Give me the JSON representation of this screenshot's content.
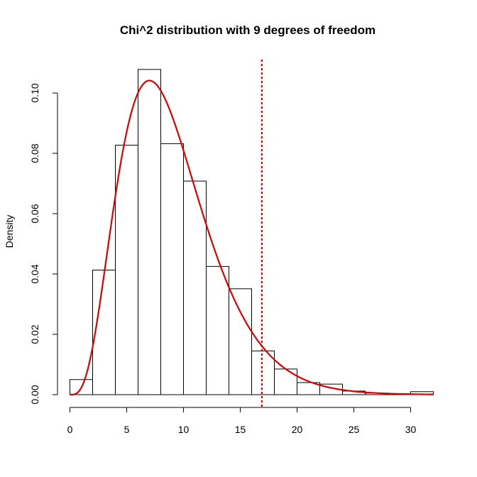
{
  "chart_data": {
    "type": "bar",
    "title": "Chi^2 distribution with 9 degrees of freedom",
    "xlabel": "",
    "ylabel": "Density",
    "xlim": [
      0,
      32
    ],
    "ylim": [
      0,
      0.11
    ],
    "x_ticks": [
      0,
      5,
      10,
      15,
      20,
      25,
      30
    ],
    "x_tick_labels": [
      "0",
      "5",
      "10",
      "15",
      "20",
      "25",
      "30"
    ],
    "y_ticks": [
      0.0,
      0.02,
      0.04,
      0.06,
      0.08,
      0.1
    ],
    "y_tick_labels": [
      "0.00",
      "0.02",
      "0.04",
      "0.06",
      "0.08",
      "0.10"
    ],
    "grid": false,
    "histogram": {
      "bin_edges": [
        0,
        2,
        4,
        6,
        8,
        10,
        12,
        14,
        16,
        18,
        20,
        22,
        24,
        26,
        28,
        30,
        32
      ],
      "values": [
        0.005,
        0.0413,
        0.0827,
        0.1078,
        0.0832,
        0.0708,
        0.0425,
        0.0351,
        0.0145,
        0.0085,
        0.004,
        0.0035,
        0.0012,
        0.0005,
        0.0003,
        0.001
      ],
      "fill": "#ffffff",
      "stroke": "#000000"
    },
    "density_curve": {
      "distribution": "chi-squared",
      "degrees_of_freedom": 9,
      "color": "#dd0000"
    },
    "vline": {
      "x": 16.9,
      "color": "#dd0000",
      "style": "dotted"
    }
  }
}
